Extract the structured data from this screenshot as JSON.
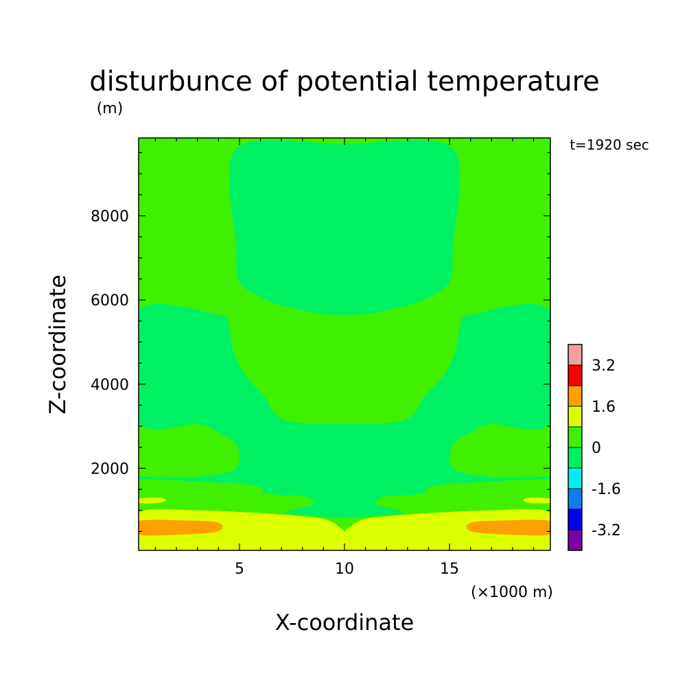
{
  "chart_data": {
    "type": "heatmap",
    "title": "disturbunce of potential temperature",
    "subtitle": "",
    "time_label": "t=1920 sec",
    "xlabel": "X-coordinate",
    "ylabel": "Z-coordinate",
    "x_unit": "(×1000 m)",
    "y_unit": "(m)",
    "xlim": [
      0.2,
      19.8
    ],
    "ylim": [
      50,
      9850
    ],
    "xticks": [
      5,
      10,
      15
    ],
    "xtick_labels": [
      "5",
      "10",
      "15"
    ],
    "yticks": [
      2000,
      4000,
      6000,
      8000
    ],
    "ytick_labels": [
      "2000",
      "4000",
      "6000",
      "8000"
    ],
    "colorbar": {
      "levels": [
        -4.0,
        -3.2,
        -2.4,
        -1.6,
        -0.8,
        0,
        0.8,
        1.6,
        2.4,
        3.2,
        4.0
      ],
      "colors": [
        "#7a00a8",
        "#0000f0",
        "#0a7ff0",
        "#00f0f0",
        "#00f064",
        "#40f000",
        "#dcff00",
        "#ffa000",
        "#ff0000",
        "#f0a0a0"
      ],
      "tick_values": [
        -3.2,
        -1.6,
        0,
        1.6,
        3.2
      ],
      "tick_labels": [
        "-3.2",
        "-1.6",
        "0",
        "1.6",
        "3.2"
      ]
    },
    "regions": [
      {
        "name": "level-0-to-0.8-band-top",
        "level_min": 0,
        "level_max": 0.8,
        "color": "#40f000",
        "x": [
          0.2,
          4.8,
          4.9,
          5.0,
          5.1,
          5.4,
          6.0,
          8.0,
          10.0,
          12.0,
          14.0,
          14.6,
          14.9,
          15.0,
          15.1,
          15.2,
          19.8
        ],
        "note": "domain-wide base"
      },
      {
        "name": "upper-core",
        "level_min": -0.8,
        "level_max": 0,
        "color": "#00f064",
        "outline": [
          [
            4.85,
            9600
          ],
          [
            4.85,
            7200
          ],
          [
            4.9,
            6600
          ],
          [
            5.2,
            6300
          ],
          [
            6.5,
            5950
          ],
          [
            8.5,
            5700
          ],
          [
            10.0,
            5650
          ],
          [
            11.5,
            5700
          ],
          [
            13.5,
            5950
          ],
          [
            14.8,
            6300
          ],
          [
            15.1,
            6600
          ],
          [
            15.15,
            7200
          ],
          [
            15.15,
            9600
          ],
          [
            10.0,
            9700
          ]
        ]
      },
      {
        "name": "mid-core",
        "level_min": -0.8,
        "level_max": 0,
        "color": "#00f064",
        "outline": [
          [
            0.2,
            5750
          ],
          [
            4.0,
            5650
          ],
          [
            4.5,
            5400
          ],
          [
            4.7,
            4800
          ],
          [
            5.3,
            4200
          ],
          [
            6.2,
            3700
          ],
          [
            6.7,
            3300
          ],
          [
            7.5,
            3100
          ],
          [
            10.0,
            3050
          ],
          [
            12.5,
            3100
          ],
          [
            13.3,
            3300
          ],
          [
            13.8,
            3700
          ],
          [
            14.7,
            4200
          ],
          [
            15.3,
            4800
          ],
          [
            15.5,
            5400
          ],
          [
            16.0,
            5650
          ],
          [
            19.8,
            5750
          ],
          [
            19.8,
            3100
          ],
          [
            17.0,
            3050
          ],
          [
            16.0,
            2850
          ],
          [
            15.2,
            2600
          ],
          [
            15.0,
            2250
          ],
          [
            15.3,
            1950
          ],
          [
            17.0,
            1800
          ],
          [
            19.8,
            1800
          ],
          [
            19.8,
            1750
          ],
          [
            17.5,
            1700
          ],
          [
            14.5,
            1600
          ],
          [
            13.5,
            1450
          ],
          [
            12.0,
            1350
          ],
          [
            11.5,
            1150
          ],
          [
            12.8,
            950
          ],
          [
            11.0,
            850
          ],
          [
            10.0,
            820
          ],
          [
            9.0,
            850
          ],
          [
            7.2,
            950
          ],
          [
            8.5,
            1150
          ],
          [
            8.0,
            1350
          ],
          [
            6.5,
            1450
          ],
          [
            5.5,
            1600
          ],
          [
            2.5,
            1700
          ],
          [
            0.2,
            1750
          ],
          [
            0.2,
            1800
          ],
          [
            3.0,
            1800
          ],
          [
            4.7,
            1950
          ],
          [
            5.0,
            2250
          ],
          [
            4.8,
            2600
          ],
          [
            4.0,
            2850
          ],
          [
            3.0,
            3050
          ],
          [
            0.2,
            3100
          ]
        ]
      },
      {
        "name": "low-mid-core",
        "level_min": -0.8,
        "level_max": 0,
        "color": "#00f064",
        "outline": [
          [
            6.2,
            1500
          ],
          [
            9.5,
            1600
          ],
          [
            10.0,
            1620
          ],
          [
            10.5,
            1600
          ],
          [
            13.8,
            1500
          ],
          [
            13.2,
            1370
          ],
          [
            10.0,
            1330
          ],
          [
            6.8,
            1370
          ]
        ]
      },
      {
        "name": "near-surface-yellow",
        "level_min": 0.8,
        "level_max": 1.6,
        "color": "#dcff00",
        "outline": [
          [
            0.2,
            950
          ],
          [
            3.0,
            1000
          ],
          [
            5.5,
            950
          ],
          [
            7.0,
            900
          ],
          [
            9.0,
            800
          ],
          [
            9.9,
            550
          ],
          [
            10.0,
            450
          ],
          [
            10.1,
            550
          ],
          [
            11.0,
            800
          ],
          [
            13.0,
            900
          ],
          [
            14.5,
            950
          ],
          [
            17.0,
            1000
          ],
          [
            19.8,
            950
          ],
          [
            19.8,
            50
          ],
          [
            0.2,
            50
          ]
        ]
      },
      {
        "name": "yellow-streak-left",
        "level_min": 0.8,
        "level_max": 1.6,
        "color": "#dcff00",
        "outline": [
          [
            0.2,
            1280
          ],
          [
            1.2,
            1300
          ],
          [
            1.5,
            1230
          ],
          [
            1.0,
            1170
          ],
          [
            0.2,
            1180
          ]
        ]
      },
      {
        "name": "yellow-streak-right",
        "level_min": 0.8,
        "level_max": 1.6,
        "color": "#dcff00",
        "outline": [
          [
            19.8,
            1280
          ],
          [
            18.8,
            1300
          ],
          [
            18.5,
            1230
          ],
          [
            19.0,
            1170
          ],
          [
            19.8,
            1180
          ]
        ]
      },
      {
        "name": "orange-left",
        "level_min": 1.6,
        "level_max": 2.4,
        "color": "#ffa000",
        "outline": [
          [
            0.2,
            750
          ],
          [
            2.5,
            760
          ],
          [
            3.9,
            720
          ],
          [
            4.2,
            600
          ],
          [
            3.8,
            480
          ],
          [
            2.0,
            420
          ],
          [
            0.2,
            430
          ]
        ]
      },
      {
        "name": "orange-right",
        "level_min": 1.6,
        "level_max": 2.4,
        "color": "#ffa000",
        "outline": [
          [
            19.8,
            750
          ],
          [
            17.5,
            760
          ],
          [
            16.1,
            720
          ],
          [
            15.8,
            600
          ],
          [
            16.2,
            480
          ],
          [
            18.0,
            420
          ],
          [
            19.8,
            430
          ]
        ]
      }
    ]
  }
}
